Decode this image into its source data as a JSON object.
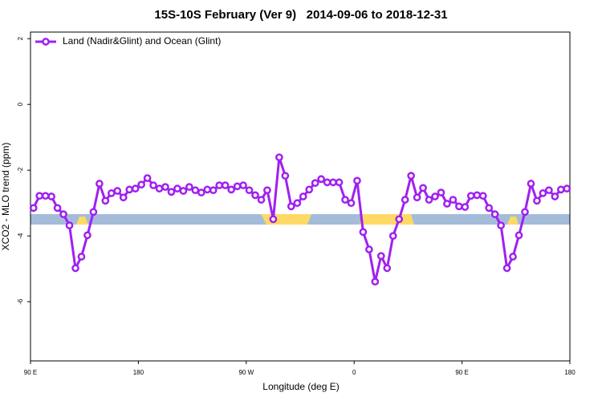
{
  "chart_data": {
    "type": "line",
    "title": "15S-10S February (Ver 9)   2014-09-06 to 2018-12-31",
    "x_label": "Longitude (deg E)",
    "y_label": "XCO2 - MLO trend (ppm)",
    "xlim": [
      90,
      540
    ],
    "ylim": [
      -7.8,
      2.2
    ],
    "xticks": [
      {
        "value": 90,
        "label": "90 E"
      },
      180,
      {
        "value": 270,
        "label": "90 W"
      },
      {
        "value": 360,
        "label": "0"
      },
      {
        "value": 450,
        "label": "90 E"
      },
      {
        "value": 540,
        "label": "180"
      }
    ],
    "yticks": [
      -6,
      -4,
      -2,
      0,
      2
    ],
    "legend": "top-left",
    "x": [
      92.5,
      97.5,
      102.5,
      107.5,
      112.5,
      117.5,
      122.5,
      127.5,
      132.5,
      137.5,
      142.5,
      147.5,
      152.5,
      157.5,
      162.5,
      167.5,
      172.5,
      177.5,
      182.5,
      187.5,
      192.5,
      197.5,
      202.5,
      207.5,
      212.5,
      217.5,
      222.5,
      227.5,
      232.5,
      237.5,
      242.5,
      247.5,
      252.5,
      257.5,
      262.5,
      267.5,
      272.5,
      277.5,
      282.5,
      287.5,
      292.5,
      297.5,
      302.5,
      307.5,
      312.5,
      317.5,
      322.5,
      327.5,
      332.5,
      337.5,
      342.5,
      347.5,
      352.5,
      357.5,
      362.5,
      367.5,
      372.5,
      377.5,
      382.5,
      387.5,
      392.5,
      397.5,
      402.5,
      407.5,
      412.5,
      417.5,
      422.5,
      427.5,
      432.5,
      437.5,
      442.5,
      447.5,
      452.5,
      457.5,
      462.5,
      467.5,
      472.5,
      477.5,
      482.5,
      487.5,
      492.5,
      497.5,
      502.5,
      507.5,
      512.5,
      517.5,
      522.5,
      527.5,
      532.5,
      537.5
    ],
    "series": [
      {
        "name": "Land (Nadir&Glint) and Ocean (Glint)",
        "color": "#a020f0",
        "values": [
          -3.15,
          -2.78,
          -2.78,
          -2.8,
          -3.15,
          -3.34,
          -3.68,
          -4.98,
          -4.63,
          -3.98,
          -3.27,
          -2.41,
          -2.93,
          -2.7,
          -2.63,
          -2.83,
          -2.59,
          -2.56,
          -2.44,
          -2.24,
          -2.46,
          -2.56,
          -2.51,
          -2.66,
          -2.56,
          -2.63,
          -2.51,
          -2.61,
          -2.68,
          -2.59,
          -2.61,
          -2.46,
          -2.46,
          -2.59,
          -2.49,
          -2.46,
          -2.61,
          -2.76,
          -2.9,
          -2.61,
          -3.49,
          -1.61,
          -2.17,
          -3.1,
          -3.0,
          -2.8,
          -2.59,
          -2.39,
          -2.27,
          -2.37,
          -2.37,
          -2.37,
          -2.9,
          -3.0,
          -2.32,
          -3.88,
          -4.41,
          -5.39,
          -4.61,
          -4.98,
          -4.0,
          -3.49,
          -2.9,
          -2.17,
          -2.83,
          -2.54,
          -2.9,
          -2.8,
          -2.68,
          -3.02,
          -2.9,
          -3.1,
          -3.12,
          -2.78,
          -2.76,
          -2.78,
          -3.15,
          -3.34,
          -3.68,
          -4.98,
          -4.63,
          -3.98,
          -3.27,
          -2.41,
          -2.93,
          -2.7,
          -2.61,
          -2.8,
          -2.59,
          -2.56
        ]
      }
    ]
  }
}
